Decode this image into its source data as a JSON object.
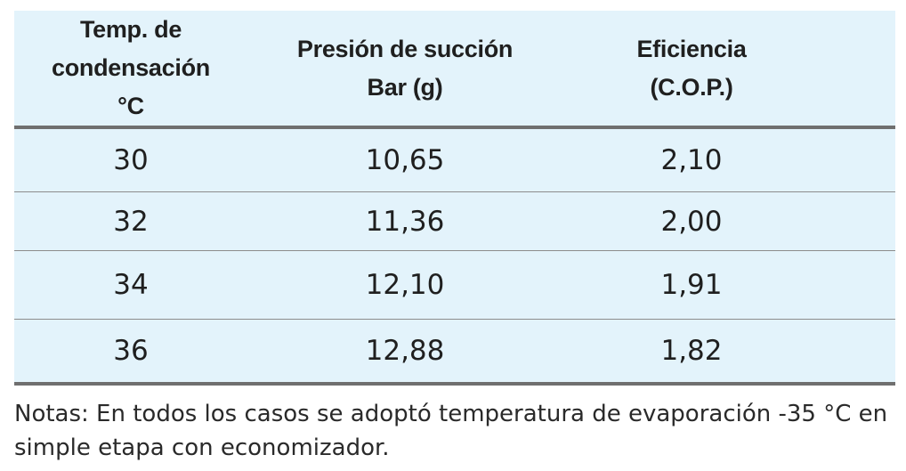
{
  "table": {
    "headers": [
      {
        "line1": "Temp. de condensación",
        "line2": "°C"
      },
      {
        "line1": "Presión de succión",
        "line2": "Bar (g)"
      },
      {
        "line1": "Eficiencia",
        "line2": "(C.O.P.)"
      }
    ],
    "rows": [
      [
        "30",
        "10,65",
        "2,10"
      ],
      [
        "32",
        "11,36",
        "2,00"
      ],
      [
        "34",
        "12,10",
        "1,91"
      ],
      [
        "36",
        "12,88",
        "1,82"
      ]
    ]
  },
  "notes": "Notas: En todos los casos se adoptó temperatura de evaporación -35 °C en simple etapa con economizador.",
  "colors": {
    "table_background": "#e3f3fb",
    "rule_heavy": "#6f6f6f",
    "rule_light": "#8c8c8c",
    "text": "#1f1f1f"
  }
}
